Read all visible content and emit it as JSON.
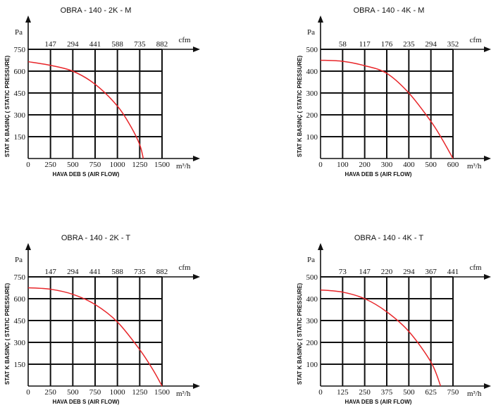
{
  "colors": {
    "curve": "#e8262a",
    "grid": "#111111"
  },
  "chart_data": [
    {
      "type": "line",
      "title": "OBRA - 140 - 2K - M",
      "xlabel": "HAVA DEB S  (AIR FLOW)",
      "ylabel": "STAT K BASINÇ ( STATIC PRESSURE)",
      "x_unit": "m³/h",
      "y_unit": "Pa",
      "cfm_unit": "cfm",
      "xlim": [
        0,
        1500
      ],
      "ylim": [
        0,
        750
      ],
      "x_ticks": [
        "0",
        "250",
        "500",
        "750",
        "1000",
        "1250",
        "1500"
      ],
      "y_ticks": [
        "150",
        "300",
        "450",
        "600",
        "750"
      ],
      "cfm_ticks": [
        "147",
        "294",
        "441",
        "588",
        "735",
        "882"
      ],
      "series": [
        {
          "x": [
            0,
            250,
            500,
            750,
            1000,
            1150,
            1250,
            1290
          ],
          "y": [
            665,
            640,
            600,
            510,
            360,
            220,
            95,
            0
          ]
        }
      ]
    },
    {
      "type": "line",
      "title": "OBRA -  140 - 4K - M",
      "xlabel": "HAVA DEB S  (AIR FLOW)",
      "ylabel": "STAT K BASINÇ ( STATIC PRESSURE)",
      "x_unit": "m³/h",
      "y_unit": "Pa",
      "cfm_unit": "cfm",
      "xlim": [
        0,
        600
      ],
      "ylim": [
        0,
        500
      ],
      "x_ticks": [
        "0",
        "100",
        "200",
        "300",
        "400",
        "500",
        "600"
      ],
      "y_ticks": [
        "100",
        "200",
        "300",
        "400",
        "500"
      ],
      "cfm_ticks": [
        "58",
        "117",
        "176",
        "235",
        "294",
        "352"
      ],
      "series": [
        {
          "x": [
            0,
            100,
            200,
            300,
            400,
            500,
            550,
            600
          ],
          "y": [
            450,
            445,
            425,
            390,
            300,
            170,
            90,
            0
          ]
        }
      ]
    },
    {
      "type": "line",
      "title": "OBRA - 140 - 2K - T",
      "xlabel": "HAVA DEB S  (AIR FLOW)",
      "ylabel": "STAT K BASINÇ ( STATIC PRESSURE)",
      "x_unit": "m³/h",
      "y_unit": "Pa",
      "cfm_unit": "cfm",
      "xlim": [
        0,
        1500
      ],
      "ylim": [
        0,
        750
      ],
      "x_ticks": [
        "0",
        "250",
        "500",
        "750",
        "1000",
        "1250",
        "1500"
      ],
      "y_ticks": [
        "150",
        "300",
        "450",
        "600",
        "750"
      ],
      "cfm_ticks": [
        "147",
        "294",
        "441",
        "588",
        "735",
        "882"
      ],
      "series": [
        {
          "x": [
            0,
            250,
            500,
            750,
            1000,
            1250,
            1400,
            1500
          ],
          "y": [
            675,
            665,
            630,
            560,
            440,
            250,
            110,
            0
          ]
        }
      ]
    },
    {
      "type": "line",
      "title": "OBRA - 140 - 4K - T",
      "xlabel": "HAVA DEB S  (AIR FLOW)",
      "ylabel": "STAT K BASINÇ ( STATIC PRESSURE)",
      "x_unit": "m³/h",
      "y_unit": "Pa",
      "cfm_unit": "cfm",
      "xlim": [
        0,
        750
      ],
      "ylim": [
        0,
        500
      ],
      "x_ticks": [
        "0",
        "125",
        "250",
        "375",
        "500",
        "625",
        "750"
      ],
      "y_ticks": [
        "100",
        "200",
        "300",
        "400",
        "500"
      ],
      "cfm_ticks": [
        "73",
        "147",
        "220",
        "294",
        "367",
        "441"
      ],
      "series": [
        {
          "x": [
            0,
            125,
            250,
            375,
            500,
            625,
            680
          ],
          "y": [
            440,
            430,
            400,
            340,
            250,
            110,
            0
          ]
        }
      ]
    }
  ]
}
